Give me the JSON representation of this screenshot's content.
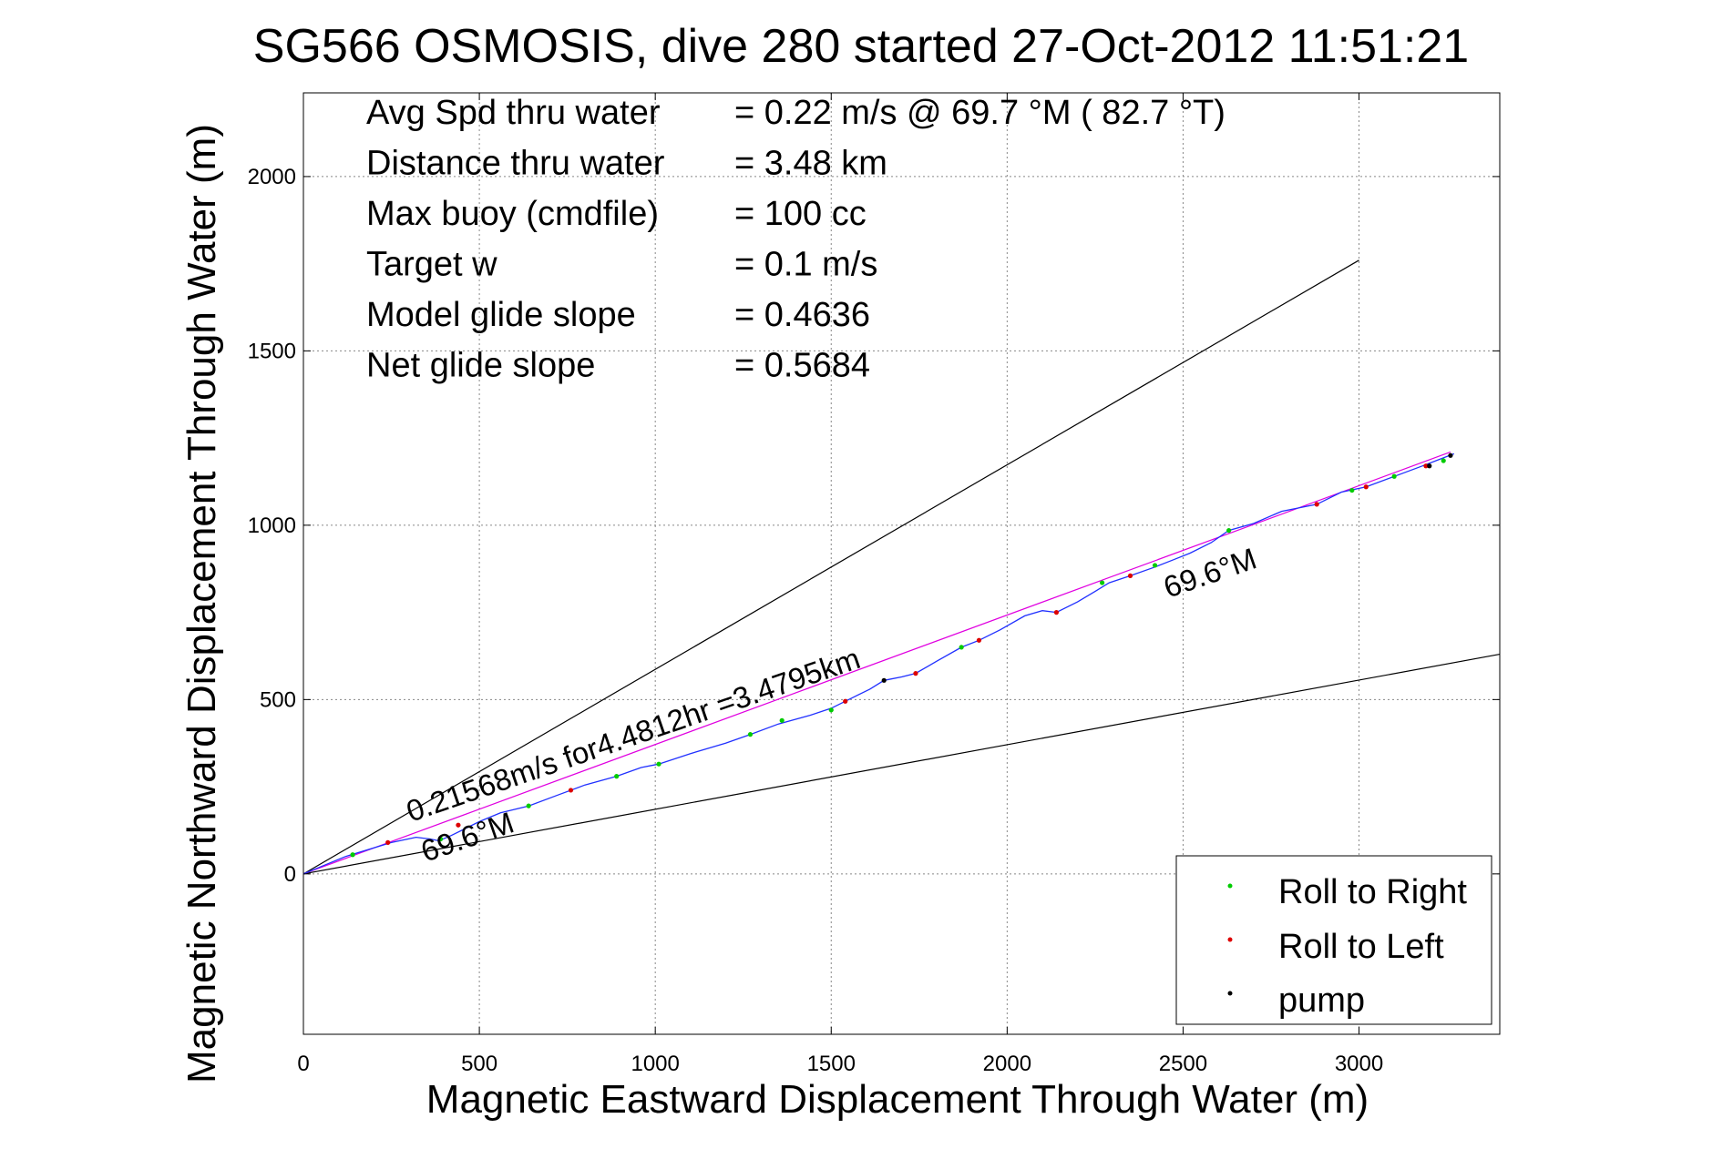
{
  "chart_data": {
    "type": "line",
    "title": "SG566 OSMOSIS, dive 280 started 27-Oct-2012 11:51:21",
    "xlabel": "Magnetic Eastward Displacement Through Water (m)",
    "ylabel": "Magnetic Northward Displacement Through Water (m)",
    "xlim": [
      0,
      3400
    ],
    "ylim": [
      -460,
      2240
    ],
    "xticks": [
      0,
      500,
      1000,
      1500,
      2000,
      2500,
      3000
    ],
    "yticks": [
      0,
      500,
      1000,
      1500,
      2000
    ],
    "grid": true,
    "legend_position": "bottom-right",
    "info_lines": [
      {
        "label": "Avg Spd thru water",
        "value": "=  0.22 m/s @  69.7 °M ( 82.7 °T)"
      },
      {
        "label": "Distance thru water",
        "value": "=  3.48 km"
      },
      {
        "label": "Max buoy (cmdfile)",
        "value": "= 100 cc"
      },
      {
        "label": "Target w",
        "value": "= 0.1 m/s"
      },
      {
        "label": "Model glide slope",
        "value": "= 0.4636"
      },
      {
        "label": "Net glide slope",
        "value": "= 0.5684"
      }
    ],
    "annotations": {
      "track_label": "0.21568m/s for4.4812hr =3.4795km",
      "heading_label_start": "69.6°M",
      "heading_label_end": "69.6°M"
    },
    "reference_lines": [
      {
        "x": [
          0,
          3000
        ],
        "y": [
          0,
          1760
        ],
        "color": "#000000"
      },
      {
        "x": [
          0,
          3400
        ],
        "y": [
          0,
          630
        ],
        "color": "#000000"
      },
      {
        "x": [
          0,
          3260
        ],
        "y": [
          0,
          1210
        ],
        "color": "#e000e0"
      }
    ],
    "series": [
      {
        "color": "#2030ff",
        "x": [
          0,
          120,
          250,
          320,
          360,
          385,
          420,
          500,
          560,
          640,
          720,
          800,
          890,
          960,
          1010,
          1100,
          1200,
          1270,
          1350,
          1440,
          1500,
          1560,
          1610,
          1650,
          1700,
          1740,
          1800,
          1870,
          1920,
          1980,
          2050,
          2100,
          2140,
          2200,
          2250,
          2290,
          2350,
          2420,
          2470,
          2520,
          2580,
          2630,
          2700,
          2780,
          2880,
          2950,
          3020,
          3100,
          3180,
          3270
        ],
        "y": [
          0,
          50,
          90,
          105,
          100,
          95,
          110,
          150,
          175,
          195,
          225,
          255,
          280,
          305,
          315,
          345,
          375,
          400,
          430,
          455,
          475,
          505,
          530,
          555,
          565,
          575,
          610,
          650,
          670,
          700,
          740,
          755,
          750,
          780,
          810,
          835,
          855,
          880,
          900,
          920,
          950,
          985,
          1005,
          1040,
          1060,
          1095,
          1110,
          1140,
          1170,
          1205
        ]
      }
    ],
    "markers": {
      "roll_right": {
        "color": "#00cc00",
        "x": [
          140,
          390,
          640,
          890,
          1010,
          1270,
          1360,
          1500,
          1870,
          2270,
          2420,
          2630,
          2980,
          3100,
          3240
        ],
        "y": [
          55,
          100,
          195,
          280,
          315,
          400,
          440,
          470,
          650,
          835,
          885,
          985,
          1100,
          1140,
          1185
        ]
      },
      "roll_left": {
        "color": "#dd0000",
        "x": [
          240,
          440,
          760,
          1540,
          1740,
          1920,
          2140,
          2350,
          2880,
          3020,
          3190
        ],
        "y": [
          90,
          140,
          240,
          495,
          575,
          670,
          750,
          855,
          1060,
          1110,
          1170
        ]
      },
      "pump": {
        "color": "#000000",
        "x": [
          1650,
          3200,
          3260
        ],
        "y": [
          555,
          1170,
          1200
        ]
      }
    },
    "legend": [
      {
        "label": "Roll to Right",
        "color": "#00cc00"
      },
      {
        "label": "Roll to Left",
        "color": "#dd0000"
      },
      {
        "label": "pump",
        "color": "#000000"
      }
    ]
  }
}
